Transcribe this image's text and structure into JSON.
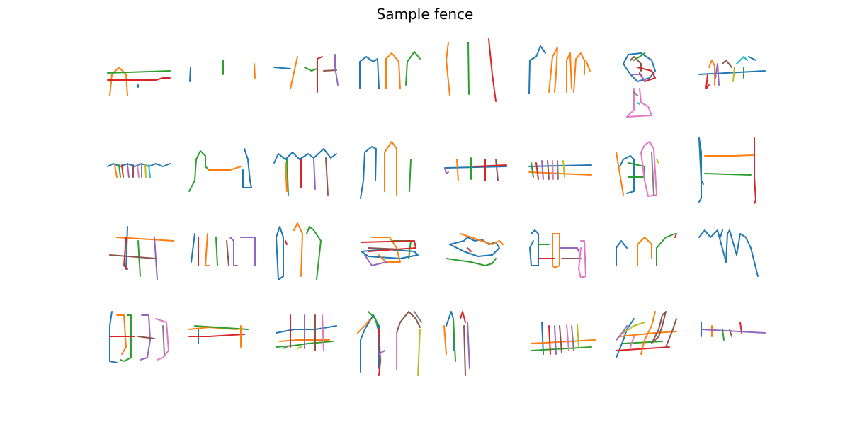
{
  "title": "Sample fence",
  "palette": [
    "#1f77b4",
    "#ff7f0e",
    "#2ca02c",
    "#d62728",
    "#9467bd",
    "#8c564b",
    "#e377c2",
    "#7f7f7f",
    "#bcbd22",
    "#17becf"
  ],
  "grid": {
    "rows": 4,
    "cols": 8,
    "subject": "fence"
  }
}
